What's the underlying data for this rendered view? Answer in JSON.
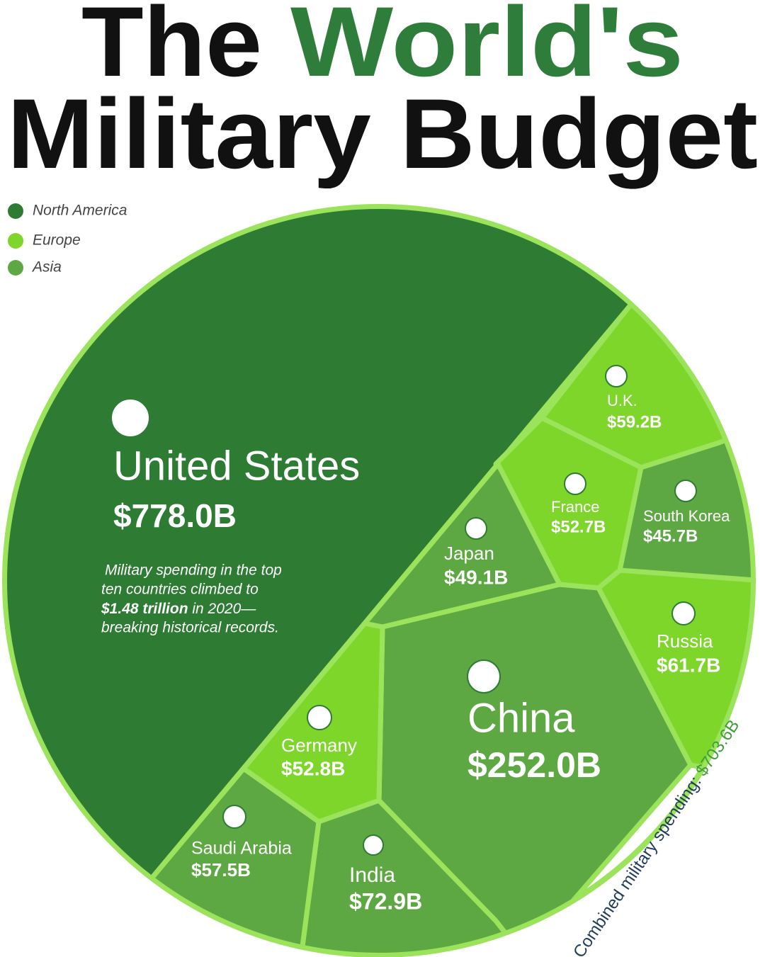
{
  "chart_data": {
    "type": "voronoi",
    "title": [
      "The",
      "World's",
      "Military Budget"
    ],
    "title_colors": [
      "#111111",
      "#2f7d3b",
      "#111111"
    ],
    "series": [
      {
        "name": "North America",
        "color": "#2e7b34"
      },
      {
        "name": "Europe",
        "color": "#7ed62b"
      },
      {
        "name": "Asia",
        "color": "#5ea843"
      }
    ],
    "categories": [
      "United States",
      "China",
      "India",
      "Russia",
      "U.K.",
      "Saudi Arabia",
      "Germany",
      "France",
      "Japan",
      "South Korea"
    ],
    "values": [
      778.0,
      252.0,
      72.9,
      61.7,
      59.2,
      57.5,
      52.8,
      52.7,
      49.1,
      45.7
    ],
    "value_labels": [
      "$778.0B",
      "$252.0B",
      "$72.9B",
      "$61.7B",
      "$59.2B",
      "$57.5B",
      "$52.8B",
      "$52.7B",
      "$49.1B",
      "$45.7B"
    ],
    "colors": [
      "#2e7b34",
      "#5ea843",
      "#5ea843",
      "#7ed62b",
      "#7ed62b",
      "#5ea843",
      "#7ed62b",
      "#7ed62b",
      "#5ea843",
      "#5ea843"
    ],
    "annotation": [
      "Military spending in the top",
      "ten countries climbed to",
      "$1.48 trillion",
      " in 2020—",
      "breaking historical records."
    ],
    "combined": [
      "Combined military spending: ",
      "$703.6B"
    ]
  }
}
